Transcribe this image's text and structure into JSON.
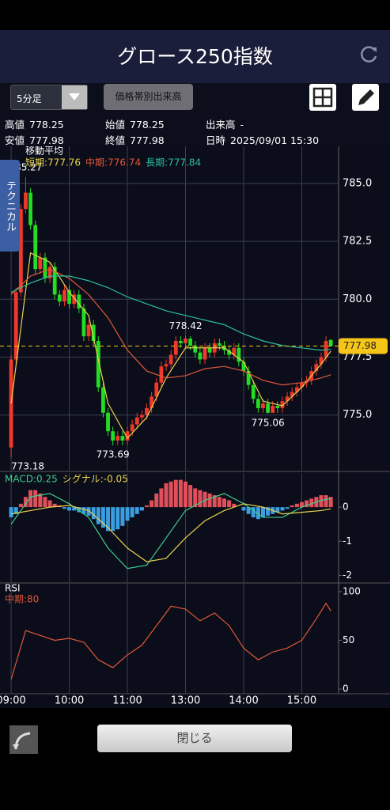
{
  "header": {
    "title": "グロース250指数"
  },
  "toolbar": {
    "interval": "5分足",
    "volume_button": "価格帯別出来高"
  },
  "info": [
    {
      "label": "高値",
      "value": "778.25"
    },
    {
      "label": "始値",
      "value": "778.25"
    },
    {
      "label": "出来高",
      "value": "-"
    },
    {
      "label": "安値",
      "value": "777.98"
    },
    {
      "label": "終値",
      "value": "777.98"
    },
    {
      "label": "日時",
      "value": "2025/09/01 15:30"
    }
  ],
  "side_tab": "テクニカル",
  "close_button": "閉じる",
  "chart_data": [
    {
      "type": "candlestick",
      "title": "移動平均",
      "up_color": "#f0392b",
      "down_color": "#22dd22",
      "xlim": [
        -2.3,
        67.6
      ],
      "ylim": [
        772.6,
        786.6
      ],
      "yticks": [
        {
          "value": 775,
          "label": "775.0"
        },
        777.5,
        {
          "value": 780,
          "label": "780.0"
        },
        782.5,
        {
          "value": 785,
          "label": "785.0"
        }
      ],
      "grid": true,
      "open": [
        773.6,
        777.4,
        780.3,
        783.9,
        784.6,
        783.2,
        781.3,
        781.8,
        780.9,
        781.4,
        780.2,
        779.9,
        780.4,
        779.8,
        780.2,
        779.6,
        778.4,
        778.9,
        778.2,
        776.2,
        775.1,
        774.3,
        773.9,
        774.1,
        773.9,
        774.3,
        774.6,
        774.9,
        775.0,
        775.3,
        775.8,
        776.4,
        777.1,
        777.2,
        777.6,
        778.2,
        778.1,
        778.3,
        778.0,
        777.7,
        777.4,
        777.9,
        777.7,
        778.1,
        778.0,
        777.8,
        777.6,
        777.9,
        777.3,
        776.9,
        776.3,
        775.7,
        775.3,
        775.5,
        775.1,
        775.4,
        775.3,
        775.6,
        775.8,
        776.0,
        776.2,
        776.4,
        776.5,
        776.9,
        777.2,
        777.5,
        778.25
      ],
      "high": [
        777.6,
        780.5,
        784.1,
        785.27,
        784.8,
        783.4,
        782.0,
        782.0,
        781.6,
        781.6,
        780.4,
        780.6,
        780.6,
        780.4,
        780.4,
        779.8,
        779.1,
        779.1,
        778.4,
        776.4,
        775.3,
        774.5,
        774.3,
        774.3,
        774.5,
        774.8,
        775.1,
        775.2,
        775.5,
        776.0,
        776.6,
        777.3,
        777.4,
        777.8,
        778.4,
        778.4,
        778.42,
        778.4,
        778.2,
        777.9,
        778.1,
        778.1,
        778.3,
        778.3,
        778.2,
        778.0,
        778.1,
        778.1,
        777.5,
        777.1,
        776.5,
        775.9,
        775.7,
        775.7,
        775.6,
        775.6,
        775.8,
        776.0,
        776.2,
        776.4,
        776.6,
        776.7,
        777.1,
        777.4,
        777.7,
        778.4,
        778.25
      ],
      "low": [
        773.18,
        777.2,
        780.1,
        783.7,
        783.0,
        781.1,
        781.1,
        780.7,
        780.7,
        780.0,
        779.7,
        779.7,
        779.6,
        779.6,
        779.4,
        778.2,
        778.2,
        778.0,
        776.0,
        774.9,
        774.1,
        773.69,
        773.7,
        773.7,
        773.7,
        774.1,
        774.4,
        774.7,
        774.8,
        775.1,
        775.6,
        776.2,
        776.9,
        777.0,
        777.4,
        777.9,
        777.9,
        777.8,
        777.5,
        777.2,
        777.2,
        777.5,
        777.5,
        777.8,
        777.6,
        777.4,
        777.4,
        777.1,
        776.7,
        776.1,
        775.5,
        775.1,
        775.1,
        775.06,
        775.1,
        775.1,
        775.1,
        775.4,
        775.6,
        775.8,
        776.0,
        776.2,
        776.3,
        776.7,
        777.0,
        777.3,
        777.98
      ],
      "close": [
        777.4,
        780.3,
        783.9,
        784.6,
        783.2,
        781.3,
        781.8,
        780.9,
        781.4,
        780.2,
        779.9,
        780.4,
        779.8,
        780.2,
        779.6,
        778.4,
        778.9,
        778.2,
        776.2,
        775.1,
        774.3,
        773.9,
        774.1,
        773.9,
        774.3,
        774.6,
        774.9,
        775.0,
        775.3,
        775.8,
        776.4,
        777.1,
        777.2,
        777.6,
        778.2,
        778.1,
        778.3,
        778.0,
        777.7,
        777.4,
        777.9,
        777.7,
        778.1,
        778.0,
        777.8,
        777.6,
        777.9,
        777.3,
        776.9,
        776.3,
        775.7,
        775.3,
        775.5,
        775.1,
        775.4,
        775.3,
        775.6,
        775.8,
        776.0,
        776.2,
        776.4,
        776.5,
        776.9,
        777.2,
        777.5,
        778.2,
        777.98
      ],
      "series": [
        {
          "name": "短期:777.76",
          "color": "#e8d44d",
          "x": [
            0,
            4,
            8,
            12,
            16,
            20,
            24,
            28,
            32,
            36,
            40,
            44,
            48,
            52,
            56,
            60,
            64,
            66
          ],
          "values": [
            775.5,
            782.0,
            781.6,
            780.3,
            779.3,
            775.5,
            774.0,
            774.9,
            776.6,
            777.9,
            777.9,
            777.9,
            777.3,
            775.6,
            775.4,
            776.2,
            777.2,
            777.76
          ]
        },
        {
          "name": "中期:776.74",
          "color": "#e0583a",
          "x": [
            0,
            4,
            8,
            12,
            16,
            20,
            24,
            28,
            32,
            36,
            40,
            44,
            48,
            52,
            56,
            60,
            64,
            66
          ],
          "values": [
            780.2,
            781.0,
            781.3,
            780.9,
            780.2,
            779.2,
            777.8,
            776.9,
            776.6,
            776.7,
            777.0,
            777.1,
            776.9,
            776.5,
            776.3,
            776.4,
            776.6,
            776.74
          ]
        },
        {
          "name": "長期:777.84",
          "color": "#2bbf9a",
          "x": [
            0,
            4,
            8,
            12,
            16,
            20,
            24,
            28,
            32,
            36,
            40,
            44,
            48,
            52,
            56,
            60,
            64,
            66
          ],
          "values": [
            780.3,
            780.7,
            781.0,
            781.0,
            780.8,
            780.5,
            780.1,
            779.8,
            779.5,
            779.3,
            779.1,
            778.9,
            778.5,
            778.2,
            778.0,
            777.9,
            777.8,
            777.84
          ]
        }
      ],
      "annotations": [
        {
          "x": 3,
          "y": 785.27
        },
        {
          "x": 0,
          "y": 773.18
        },
        {
          "x": 21,
          "y": 773.69
        },
        {
          "x": 36,
          "y": 778.42
        },
        {
          "x": 53,
          "y": 775.06
        }
      ],
      "last_price": 777.98,
      "last_price_color": "#f5c518"
    },
    {
      "type": "macd",
      "xlim": [
        -2.3,
        67.6
      ],
      "ylim": [
        -2.2,
        1.0
      ],
      "yticks": [
        -2,
        -1,
        0
      ],
      "pos_color": "#e0505a",
      "neg_color": "#3a9ee0",
      "histogram": [
        -0.3,
        -0.2,
        0.1,
        0.3,
        0.5,
        0.5,
        0.4,
        0.3,
        0.2,
        0.1,
        0.05,
        -0.05,
        -0.1,
        -0.1,
        -0.15,
        -0.2,
        -0.25,
        -0.35,
        -0.5,
        -0.6,
        -0.7,
        -0.7,
        -0.65,
        -0.55,
        -0.4,
        -0.3,
        -0.2,
        -0.1,
        0.05,
        0.2,
        0.4,
        0.55,
        0.7,
        0.75,
        0.8,
        0.8,
        0.75,
        0.65,
        0.55,
        0.5,
        0.45,
        0.4,
        0.35,
        0.3,
        0.25,
        0.2,
        0.1,
        0.0,
        -0.1,
        -0.2,
        -0.3,
        -0.35,
        -0.3,
        -0.25,
        -0.2,
        -0.15,
        -0.1,
        -0.05,
        0.05,
        0.1,
        0.15,
        0.2,
        0.25,
        0.3,
        0.35,
        0.35,
        0.3
      ],
      "series": [
        {
          "name": "MACD:0.25",
          "color": "#3ecf8e",
          "x": [
            0,
            4,
            8,
            12,
            16,
            20,
            24,
            28,
            32,
            36,
            40,
            44,
            48,
            52,
            56,
            60,
            64,
            66
          ],
          "values": [
            -0.5,
            0.3,
            0.4,
            0.1,
            -0.3,
            -1.2,
            -1.8,
            -1.7,
            -0.9,
            -0.1,
            0.2,
            0.4,
            0.1,
            -0.3,
            -0.3,
            0.0,
            0.2,
            0.25
          ]
        },
        {
          "name": "シグナル:-0.05",
          "color": "#e8d44d",
          "x": [
            0,
            4,
            8,
            12,
            16,
            20,
            24,
            28,
            32,
            36,
            40,
            44,
            48,
            52,
            56,
            60,
            64,
            66
          ],
          "values": [
            -0.2,
            -0.1,
            0.0,
            0.05,
            -0.1,
            -0.6,
            -1.2,
            -1.6,
            -1.5,
            -0.9,
            -0.4,
            -0.1,
            0.1,
            0.0,
            -0.2,
            -0.15,
            -0.1,
            -0.05
          ]
        }
      ]
    },
    {
      "type": "line",
      "title": "RSI",
      "xlim": [
        -2.3,
        67.6
      ],
      "ylim": [
        -4,
        108
      ],
      "yticks": [
        0,
        50,
        100
      ],
      "xticks": [
        {
          "value": 0,
          "label": "09:00"
        },
        {
          "value": 12,
          "label": "10:00"
        },
        {
          "value": 24,
          "label": "11:00"
        },
        {
          "value": 36,
          "label": "13:00"
        },
        {
          "value": 48,
          "label": "14:00"
        },
        {
          "value": 60,
          "label": "15:00"
        }
      ],
      "series": [
        {
          "name": "中期:80",
          "color": "#e0583a",
          "x": [
            0,
            3,
            6,
            9,
            12,
            15,
            18,
            21,
            24,
            27,
            30,
            33,
            36,
            39,
            42,
            45,
            48,
            51,
            54,
            57,
            60,
            63,
            65,
            66
          ],
          "values": [
            10,
            60,
            55,
            50,
            52,
            48,
            30,
            22,
            35,
            45,
            65,
            85,
            82,
            70,
            78,
            65,
            42,
            30,
            38,
            42,
            50,
            72,
            88,
            80
          ]
        }
      ]
    }
  ]
}
